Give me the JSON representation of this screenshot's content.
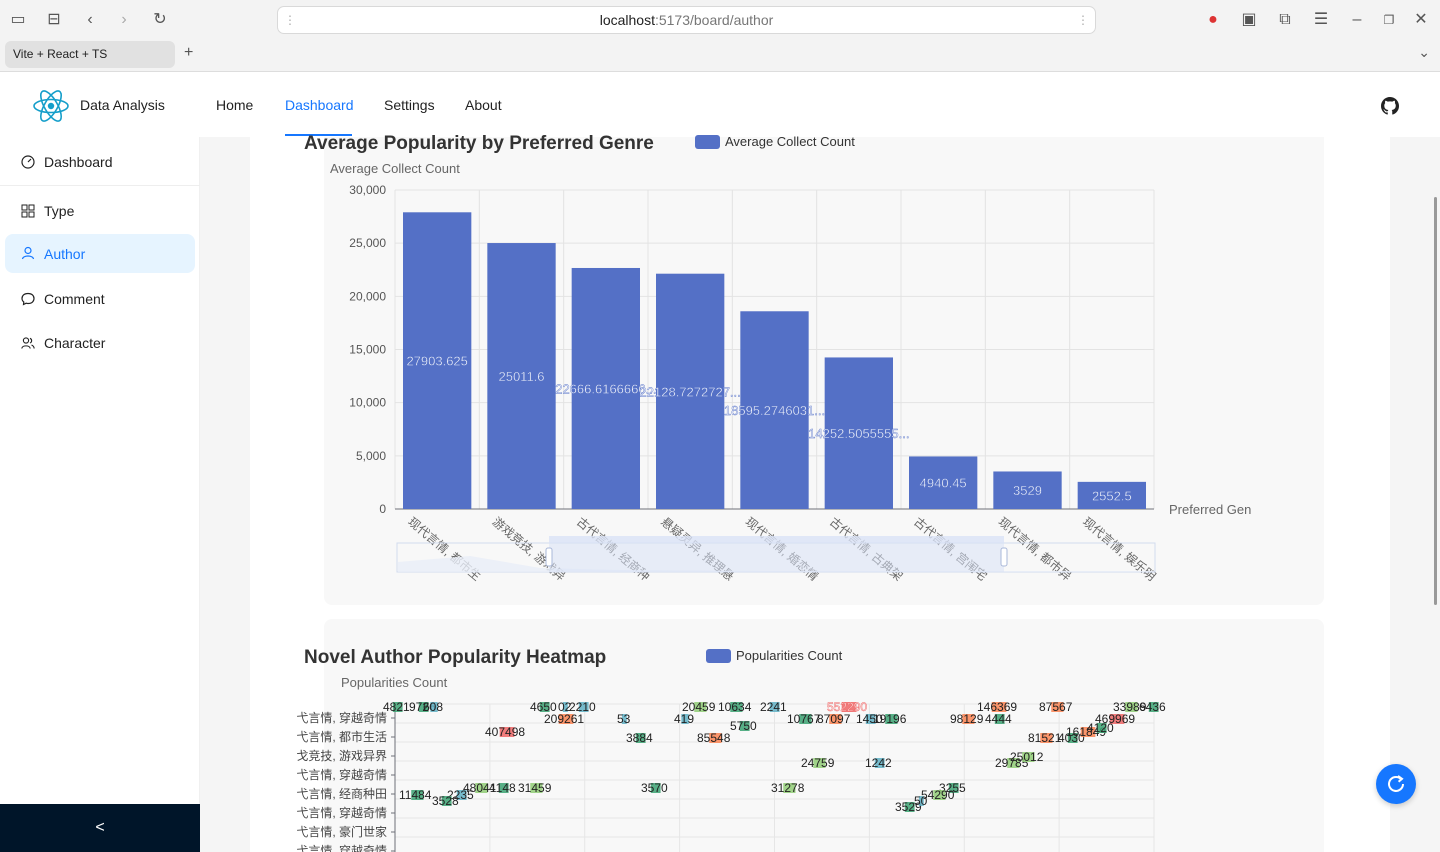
{
  "browser": {
    "url_host": "localhost",
    "url_path": ":5173/board/author",
    "tab_title": "Vite + React + TS",
    "new_tab": "+"
  },
  "header": {
    "brand": "Data Analysis",
    "nav": [
      "Home",
      "Dashboard",
      "Settings",
      "About"
    ],
    "active_nav": "Dashboard"
  },
  "sidebar": {
    "items": [
      {
        "label": "Dashboard",
        "icon": "dashboard-icon"
      },
      {
        "label": "Type",
        "icon": "grid-icon"
      },
      {
        "label": "Author",
        "icon": "user-icon"
      },
      {
        "label": "Comment",
        "icon": "comment-icon"
      },
      {
        "label": "Character",
        "icon": "users-icon"
      }
    ],
    "active": "Author",
    "collapse": "<"
  },
  "colors": {
    "accent": "#1677ff",
    "bar": "#5470c6",
    "sidebar_dark": "#001529"
  },
  "chart_data": [
    {
      "type": "bar",
      "title": "Average Popularity by Preferred Genre",
      "legend": [
        "Average Collect Count"
      ],
      "legend_position": "top",
      "ylabel": "Average Collect Count",
      "xlabel": "Preferred Gen",
      "ylim": [
        0,
        30000
      ],
      "yticks": [
        "0",
        "5,000",
        "10,000",
        "15,000",
        "20,000",
        "25,000",
        "30,000"
      ],
      "grid": true,
      "categories": [
        "现代言情, 都市生",
        "游戏竞技, 游戏异",
        "古代言情, 经商种",
        "悬疑灵异, 推理悬",
        "现代言情, 婚恋情",
        "古代言情, 古典架",
        "古代言情, 宫闱宅",
        "现代言情, 都市异",
        "现代言情, 娱乐明"
      ],
      "series": [
        {
          "name": "Average Collect Count",
          "values": [
            27903.625,
            25011.6,
            22666.616666666,
            22128.727272727,
            18595.274603174,
            14252.505555555,
            4940.45,
            3529,
            2552.5
          ]
        }
      ],
      "labels": [
        "27903.625",
        "25011.6",
        "22666.6166666...",
        "22128.7272727...",
        "18595.2746031...",
        "14252.5055555...",
        "4940.45",
        "3529",
        "2552.5"
      ]
    },
    {
      "type": "heatmap",
      "title": "Novel Author Popularity Heatmap",
      "legend": [
        "Popularities Count"
      ],
      "legend_position": "top",
      "ylabel": "Popularities Count",
      "ycategories": [
        "现代言情, 穿越奇情",
        "现代言情, 都市生活",
        "游戏竞技, 游戏异界",
        "现代言情, 穿越奇情",
        "古代言情, 经商种田",
        "古代言情, 穿越奇情",
        "现代言情, 豪门世家",
        "现代言情, 穿越奇情"
      ],
      "ycategories_shown": [
        "弋言情, 穿越奇情",
        "弋言情, 都市生活",
        "戈竞技, 游戏异界",
        "弋言情, 穿越奇情",
        "弋言情, 经商种田",
        "弋言情, 穿越奇情",
        "弋言情, 豪门世家",
        "弋言情, 穿越奇情"
      ],
      "points": [
        {
          "label": "4821",
          "value": 4821
        },
        {
          "label": "9726",
          "value": 9726
        },
        {
          "label": "608",
          "value": 608
        },
        {
          "label": "4650",
          "value": 4650
        },
        {
          "label": "02",
          "value": 2
        },
        {
          "label": "2210",
          "value": 2210
        },
        {
          "label": "20459",
          "value": 20459
        },
        {
          "label": "10634",
          "value": 10634
        },
        {
          "label": "2241",
          "value": 2241
        },
        {
          "label": "552290",
          "value": 552290
        },
        {
          "label": "146369",
          "value": 146369
        },
        {
          "label": "87567",
          "value": 87567
        },
        {
          "label": "33989",
          "value": 33989
        },
        {
          "label": "6436",
          "value": 6436
        },
        {
          "label": "209261",
          "value": 209261
        },
        {
          "label": "53",
          "value": 53
        },
        {
          "label": "419",
          "value": 419
        },
        {
          "label": "5750",
          "value": 5750
        },
        {
          "label": "10767",
          "value": 10767
        },
        {
          "label": "87097",
          "value": 87097
        },
        {
          "label": "1450",
          "value": 1450
        },
        {
          "label": "19196",
          "value": 19196
        },
        {
          "label": "98129",
          "value": 98129
        },
        {
          "label": "4444",
          "value": 4444
        },
        {
          "label": "469969",
          "value": 469969
        },
        {
          "label": "407498",
          "value": 407498
        },
        {
          "label": "3884",
          "value": 3884
        },
        {
          "label": "85548",
          "value": 85548
        },
        {
          "label": "81521",
          "value": 81521
        },
        {
          "label": "4030",
          "value": 4030
        },
        {
          "label": "161849",
          "value": 161849
        },
        {
          "label": "4120",
          "value": 4120
        },
        {
          "label": "24759",
          "value": 24759
        },
        {
          "label": "1242",
          "value": 1242
        },
        {
          "label": "29785",
          "value": 29785
        },
        {
          "label": "25012",
          "value": 25012
        },
        {
          "label": "11484",
          "value": 11484
        },
        {
          "label": "2235",
          "value": 2235
        },
        {
          "label": "48041",
          "value": 48041
        },
        {
          "label": "4148",
          "value": 4148
        },
        {
          "label": "31459",
          "value": 31459
        },
        {
          "label": "3570",
          "value": 3570
        },
        {
          "label": "31278",
          "value": 31278
        },
        {
          "label": "3255",
          "value": 3255
        },
        {
          "label": "54290",
          "value": 54290
        },
        {
          "label": "3528",
          "value": 3528
        },
        {
          "label": "3529",
          "value": 3529
        },
        {
          "label": "50",
          "value": 50
        }
      ]
    }
  ]
}
